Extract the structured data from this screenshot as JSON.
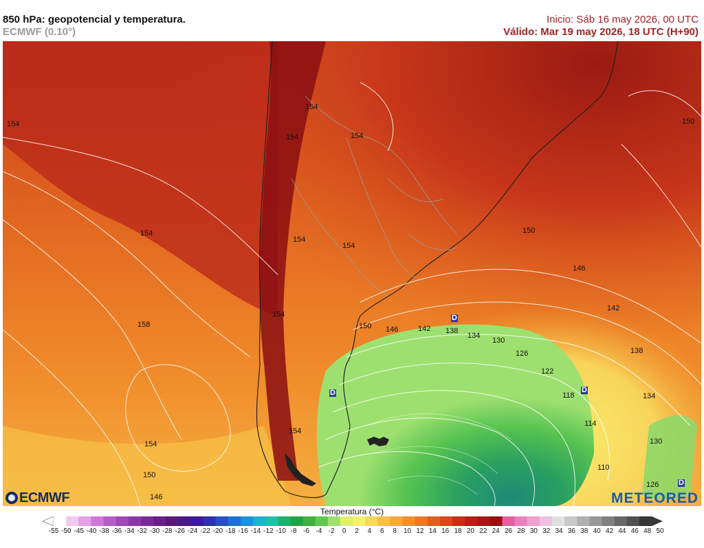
{
  "header": {
    "title": "850 hPa: geopotencial y temperatura.",
    "model": "ECMWF (0.10°)",
    "init": "Inicio: Sáb 16 may 2026, 00 UTC",
    "valid": "Válido: Mar 19 may 2026, 18 UTC (H+90)"
  },
  "map": {
    "contour_labels": [
      "154",
      "150",
      "154",
      "154",
      "154",
      "154",
      "154",
      "154",
      "150",
      "158",
      "154",
      "150",
      "146",
      "154",
      "146",
      "142",
      "150",
      "146",
      "142",
      "138",
      "134",
      "130",
      "126",
      "122",
      "118",
      "114",
      "110",
      "138",
      "134",
      "130",
      "126",
      "154",
      "150",
      "154"
    ],
    "low_markers": [
      "D",
      "D",
      "D",
      "D"
    ]
  },
  "logos": {
    "left": "ECMWF",
    "right": "METEORED"
  },
  "colorbar": {
    "title": "Temperatura (°C)",
    "ticks": [
      "-55",
      "-50",
      "-45",
      "-40",
      "-38",
      "-36",
      "-34",
      "-32",
      "-30",
      "-28",
      "-26",
      "-24",
      "-22",
      "-20",
      "-18",
      "-16",
      "-14",
      "-12",
      "-10",
      "-8",
      "-6",
      "-4",
      "-2",
      "0",
      "2",
      "4",
      "6",
      "8",
      "10",
      "12",
      "14",
      "16",
      "18",
      "20",
      "22",
      "24",
      "26",
      "28",
      "30",
      "32",
      "34",
      "36",
      "38",
      "40",
      "42",
      "44",
      "46",
      "48",
      "50"
    ],
    "colors": [
      "#ffffff",
      "#f0c8f0",
      "#e6a0e6",
      "#d078d8",
      "#b85cc8",
      "#a048b8",
      "#8a38a8",
      "#7a2a98",
      "#6a2088",
      "#5a1a78",
      "#4a1a88",
      "#3c1c98",
      "#3030a8",
      "#2850c0",
      "#2070d0",
      "#2090d8",
      "#20b0d0",
      "#20c0a8",
      "#20b070",
      "#28a048",
      "#40b040",
      "#60c850",
      "#a0e070",
      "#e0f070",
      "#f8f070",
      "#f8d860",
      "#f8c048",
      "#f8a838",
      "#f09030",
      "#e87828",
      "#e06020",
      "#d84818",
      "#c83018",
      "#b82018",
      "#a81818",
      "#981010",
      "#e060a0",
      "#e880c0",
      "#f0a0d0",
      "#f0c0e0",
      "#e0e0e0",
      "#c8c8c8",
      "#b0b0b0",
      "#989898",
      "#808080",
      "#686868",
      "#505050",
      "#383838"
    ]
  }
}
